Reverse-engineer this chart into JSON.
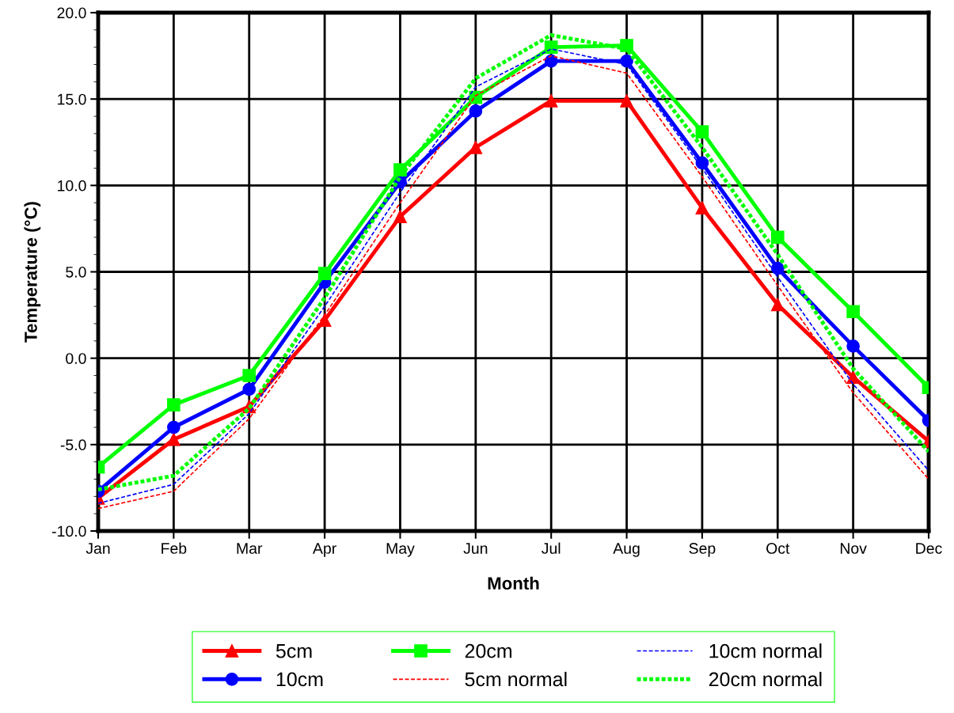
{
  "chart_data": {
    "type": "line",
    "xlabel": "Month",
    "ylabel": "Temperature (°C)",
    "categories": [
      "Jan",
      "Feb",
      "Mar",
      "Apr",
      "May",
      "Jun",
      "Jul",
      "Aug",
      "Sep",
      "Oct",
      "Nov",
      "Dec"
    ],
    "series": [
      {
        "name": "5cm",
        "color": "#ff0000",
        "marker": "triangle",
        "line_style": "solid",
        "values": [
          -8.1,
          -4.7,
          -2.8,
          2.2,
          8.2,
          12.2,
          14.9,
          14.9,
          8.7,
          3.1,
          -1.1,
          -4.8
        ]
      },
      {
        "name": "10cm",
        "color": "#0000ff",
        "marker": "circle",
        "line_style": "solid",
        "values": [
          -7.7,
          -4.0,
          -1.8,
          4.4,
          10.2,
          14.3,
          17.2,
          17.2,
          11.3,
          5.2,
          0.7,
          -3.6
        ]
      },
      {
        "name": "20cm",
        "color": "#00ff00",
        "marker": "square",
        "line_style": "solid",
        "values": [
          -6.3,
          -2.7,
          -1.0,
          4.9,
          10.9,
          15.1,
          18.0,
          18.1,
          13.1,
          7.0,
          2.7,
          -1.7
        ]
      },
      {
        "name": "5cm normal",
        "color": "#ff0000",
        "marker": "none",
        "line_style": "dashed",
        "values": [
          -8.7,
          -7.7,
          -3.5,
          2.5,
          9.0,
          15.2,
          17.5,
          16.5,
          10.5,
          4.2,
          -2.0,
          -7.0
        ]
      },
      {
        "name": "10cm normal",
        "color": "#0000ff",
        "marker": "none",
        "line_style": "dashed",
        "values": [
          -8.4,
          -7.3,
          -3.2,
          3.0,
          9.6,
          15.7,
          17.9,
          17.0,
          11.0,
          4.7,
          -1.5,
          -6.5
        ]
      },
      {
        "name": "20cm normal",
        "color": "#00ff00",
        "marker": "none",
        "line_style": "dotted",
        "values": [
          -7.6,
          -6.8,
          -2.9,
          3.5,
          10.5,
          16.2,
          18.7,
          17.9,
          12.2,
          6.0,
          -0.6,
          -5.4
        ]
      }
    ],
    "ylim": [
      -10,
      20
    ],
    "yticks": [
      {
        "value": -10,
        "label": "-10.0"
      },
      {
        "value": -5,
        "label": "-5.0"
      },
      {
        "value": 0,
        "label": "0.0"
      },
      {
        "value": 5,
        "label": "5.0"
      },
      {
        "value": 10,
        "label": "10.0"
      },
      {
        "value": 15,
        "label": "15.0"
      },
      {
        "value": 20,
        "label": "20.0"
      }
    ],
    "grid": true,
    "legend": "bottom"
  }
}
